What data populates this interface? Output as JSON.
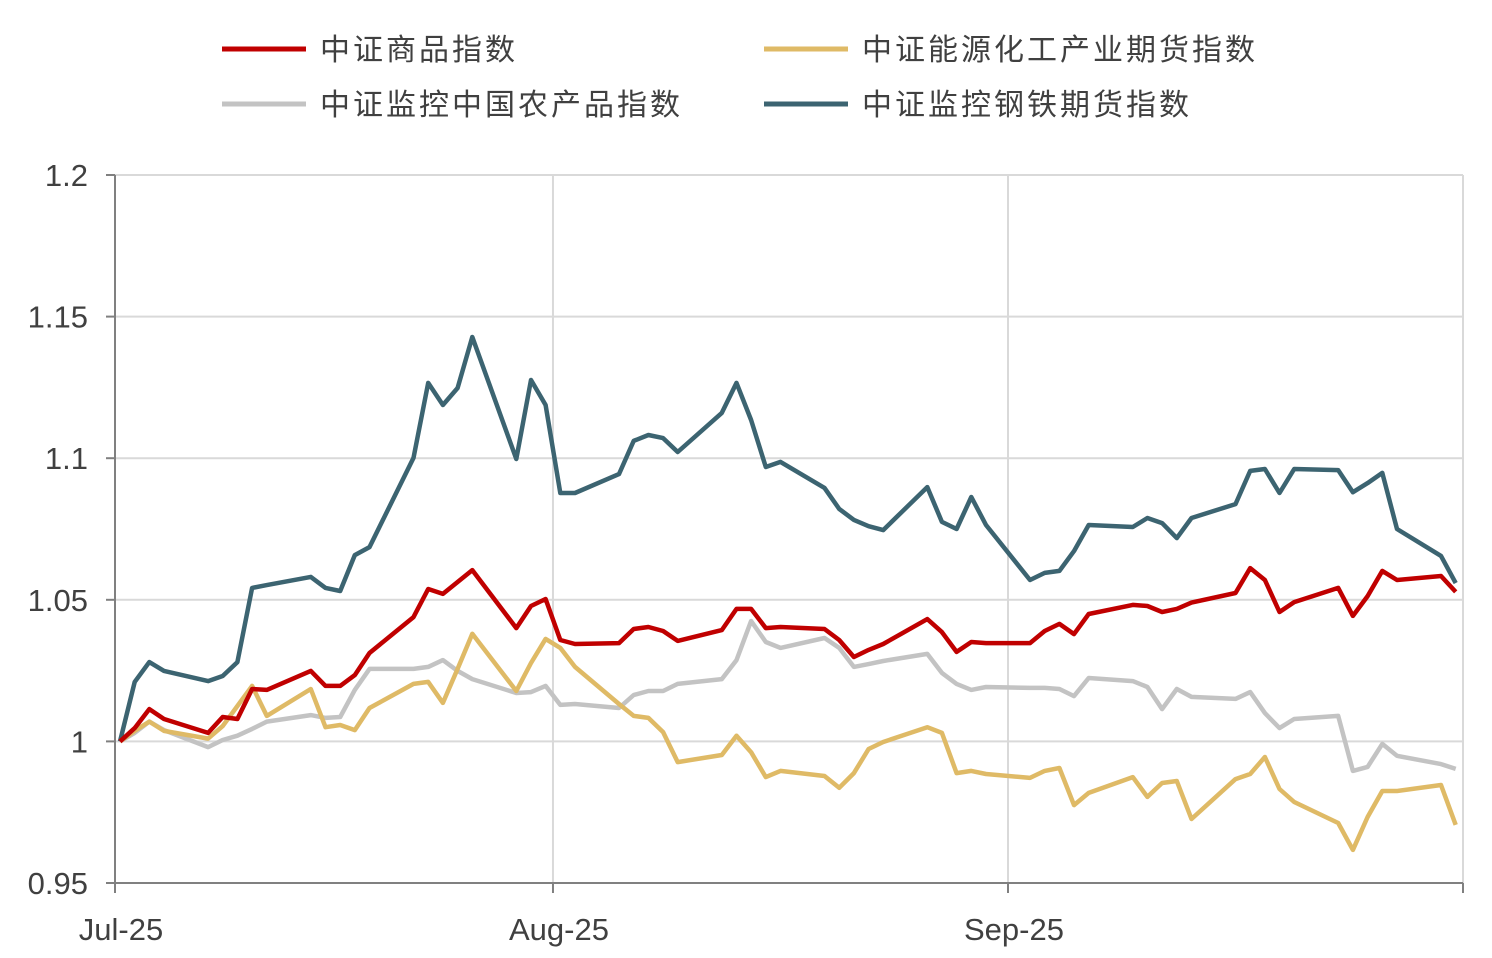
{
  "chart_data": {
    "type": "line",
    "title": "",
    "xlabel": "",
    "ylabel": "",
    "x_unit": "calendar days since 2025-07-01 (approx.)",
    "xlim": [
      -0.34,
      91.5
    ],
    "ylim": [
      0.95,
      1.2
    ],
    "y_ticks": [
      0.95,
      1,
      1.05,
      1.1,
      1.15,
      1.2
    ],
    "y_tick_labels": [
      "0.95",
      "1",
      "1.05",
      "1.1",
      "1.15",
      "1.2"
    ],
    "x_ticks": [
      -0.34,
      29.5,
      60.5,
      91.5
    ],
    "x_tick_labels": [
      "Jul-25",
      "Aug-25",
      "Sep-25",
      ""
    ],
    "grid": true,
    "legend_position": "top",
    "x": [
      0,
      1,
      2,
      3,
      6,
      7,
      8,
      9,
      10,
      13,
      14,
      15,
      16,
      17,
      20,
      21,
      22,
      23,
      24,
      27,
      28,
      29,
      30,
      31,
      34,
      35,
      36,
      37,
      38,
      41,
      42,
      43,
      44,
      45,
      48,
      49,
      50,
      51,
      52,
      55,
      56,
      57,
      58,
      59,
      62,
      63,
      64,
      65,
      66,
      69,
      70,
      71,
      72,
      73,
      76,
      77,
      78,
      79,
      80,
      83,
      84,
      85,
      86,
      87,
      90,
      91
    ],
    "series": [
      {
        "name": "中证商品指数",
        "color": "#C00000",
        "values": [
          1.0,
          1.0047,
          1.0114,
          1.0079,
          1.003,
          1.0086,
          1.0079,
          1.0185,
          1.0182,
          1.0249,
          1.0196,
          1.0196,
          1.0234,
          1.0312,
          1.0439,
          1.0538,
          1.0521,
          1.0563,
          1.0605,
          1.04,
          1.0478,
          1.0503,
          1.0358,
          1.0344,
          1.0347,
          1.0397,
          1.0404,
          1.039,
          1.0355,
          1.0393,
          1.0468,
          1.0468,
          1.04,
          1.0404,
          1.0397,
          1.0358,
          1.0298,
          1.0323,
          1.0344,
          1.0432,
          1.0386,
          1.0316,
          1.0351,
          1.0347,
          1.0347,
          1.039,
          1.0415,
          1.0379,
          1.045,
          1.0482,
          1.0478,
          1.0457,
          1.0468,
          1.049,
          1.0524,
          1.0612,
          1.057,
          1.0457,
          1.0492,
          1.0542,
          1.0443,
          1.0513,
          1.0602,
          1.057,
          1.0584,
          1.0528
        ]
      },
      {
        "name": "中证能源化工产业期货指数",
        "color": "#DFBA66",
        "values": [
          1.0,
          1.0037,
          1.007,
          1.0037,
          1.001,
          1.0054,
          1.0125,
          1.0196,
          1.009,
          1.0185,
          1.005,
          1.0058,
          1.004,
          1.0118,
          1.0203,
          1.021,
          1.0136,
          1.0256,
          1.038,
          1.0178,
          1.0277,
          1.0362,
          1.033,
          1.0263,
          1.0132,
          1.009,
          1.0083,
          1.0033,
          0.9927,
          0.9952,
          1.002,
          0.9962,
          0.9874,
          0.9896,
          0.9878,
          0.9836,
          0.9888,
          0.9973,
          0.9998,
          1.005,
          1.003,
          0.9888,
          0.9896,
          0.9885,
          0.9871,
          0.9896,
          0.9906,
          0.9775,
          0.9818,
          0.9874,
          0.9804,
          0.9853,
          0.986,
          0.9726,
          0.9867,
          0.9885,
          0.9945,
          0.9832,
          0.9786,
          0.9712,
          0.9617,
          0.9733,
          0.9825,
          0.9825,
          0.9846,
          0.9705
        ]
      },
      {
        "name": "中证监控中国农产品指数",
        "color": "#C3C3C3",
        "values": [
          1.0,
          1.003,
          1.007,
          1.004,
          0.998,
          1.0005,
          1.002,
          1.0044,
          1.007,
          1.0093,
          1.0083,
          1.0086,
          1.0182,
          1.0256,
          1.0256,
          1.0263,
          1.0287,
          1.0249,
          1.022,
          1.0171,
          1.0174,
          1.0196,
          1.0129,
          1.0132,
          1.0118,
          1.0164,
          1.0178,
          1.0178,
          1.0203,
          1.022,
          1.0287,
          1.0425,
          1.0351,
          1.033,
          1.0365,
          1.033,
          1.0263,
          1.0273,
          1.0284,
          1.0309,
          1.0242,
          1.0203,
          1.0182,
          1.0192,
          1.0189,
          1.0189,
          1.0185,
          1.016,
          1.0224,
          1.0213,
          1.0192,
          1.0114,
          1.0185,
          1.0157,
          1.015,
          1.0174,
          1.01,
          1.0047,
          1.0079,
          1.009,
          0.9896,
          0.991,
          0.9991,
          0.9949,
          0.992,
          0.9903
        ]
      },
      {
        "name": "中证监控钢铁期货指数",
        "color": "#3C6471",
        "values": [
          1.0,
          1.021,
          1.028,
          1.0249,
          1.0213,
          1.0231,
          1.028,
          1.0542,
          1.0552,
          1.0581,
          1.0542,
          1.0531,
          1.0658,
          1.0686,
          1.1001,
          1.1266,
          1.1188,
          1.1248,
          1.1428,
          1.0997,
          1.1276,
          1.1188,
          1.0877,
          1.0877,
          1.0944,
          1.1061,
          1.1082,
          1.1071,
          1.1022,
          1.116,
          1.1266,
          1.1135,
          1.0969,
          1.0987,
          1.0895,
          1.0821,
          1.0782,
          1.076,
          1.0746,
          1.0898,
          1.0775,
          1.075,
          1.0863,
          1.0764,
          1.057,
          1.0595,
          1.0602,
          1.0672,
          1.0764,
          1.0757,
          1.0789,
          1.0771,
          1.0718,
          1.0789,
          1.0838,
          1.0955,
          1.0962,
          1.0877,
          1.0962,
          1.0958,
          1.088,
          1.0912,
          1.0948,
          1.075,
          1.0655,
          1.0559
        ]
      }
    ]
  }
}
